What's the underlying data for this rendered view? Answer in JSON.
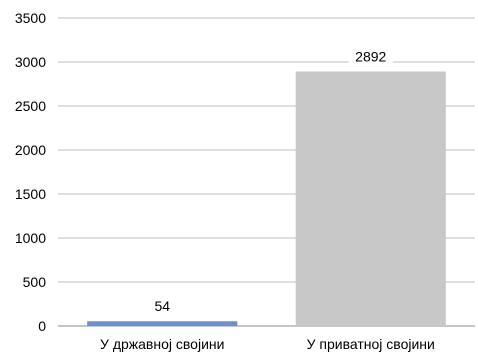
{
  "chart_data": {
    "type": "bar",
    "categories": [
      "У државној својини",
      "У приватној својини"
    ],
    "values": [
      54,
      2892
    ],
    "data_labels": [
      "54",
      "2892"
    ],
    "colors": [
      "#6E8FC9",
      "#C8C8C8"
    ],
    "ylim": [
      0,
      3500
    ],
    "yticks": [
      "0",
      "500",
      "1000",
      "1500",
      "2000",
      "2500",
      "3000",
      "3500"
    ],
    "grid": true,
    "title": "",
    "xlabel": "",
    "ylabel": ""
  }
}
